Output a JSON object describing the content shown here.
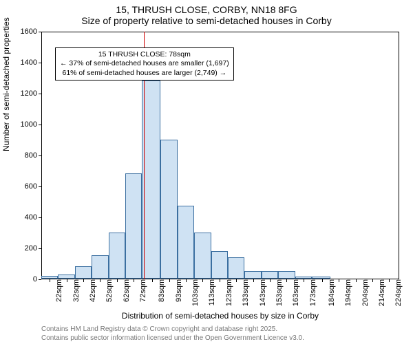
{
  "title_line1": "15, THRUSH CLOSE, CORBY, NN18 8FG",
  "title_line2": "Size of property relative to semi-detached houses in Corby",
  "ylabel": "Number of semi-detached properties",
  "xlabel": "Distribution of semi-detached houses by size in Corby",
  "footnote_line1": "Contains HM Land Registry data © Crown copyright and database right 2025.",
  "footnote_line2": "Contains public sector information licensed under the Open Government Licence v3.0.",
  "chart": {
    "type": "histogram",
    "background_color": "#ffffff",
    "axis_color": "#000000",
    "bar_fill": "#cfe2f3",
    "bar_stroke": "#3b6fa0",
    "bar_stroke_width": 1,
    "ref_line_color": "#cc0000",
    "ref_line_value": 78,
    "x_min": 17,
    "x_max": 230,
    "y_min": 0,
    "y_max": 1600,
    "y_ticks": [
      0,
      200,
      400,
      600,
      800,
      1000,
      1200,
      1400,
      1600
    ],
    "x_tick_values": [
      22,
      32,
      42,
      52,
      62,
      72,
      83,
      93,
      103,
      113,
      123,
      133,
      143,
      153,
      163,
      173,
      184,
      194,
      204,
      214,
      224
    ],
    "x_tick_suffix": "sqm",
    "bin_edges": [
      17,
      27,
      37,
      47,
      57,
      67,
      77,
      88,
      98,
      108,
      118,
      128,
      138,
      148,
      158,
      168,
      178,
      189,
      199,
      209,
      219,
      230
    ],
    "bin_counts": [
      20,
      25,
      80,
      150,
      300,
      680,
      1280,
      900,
      470,
      300,
      180,
      140,
      50,
      50,
      50,
      15,
      15,
      0,
      0,
      0,
      0
    ],
    "tick_label_fontsize": 11,
    "axis_label_fontsize": 12,
    "title_fontsize": 14
  },
  "annotation": {
    "line1": "15 THRUSH CLOSE: 78sqm",
    "line2": "← 37% of semi-detached houses are smaller (1,697)",
    "line3": "61% of semi-detached houses are larger (2,749) →",
    "border_color": "#000000",
    "background_color": "#ffffff"
  }
}
